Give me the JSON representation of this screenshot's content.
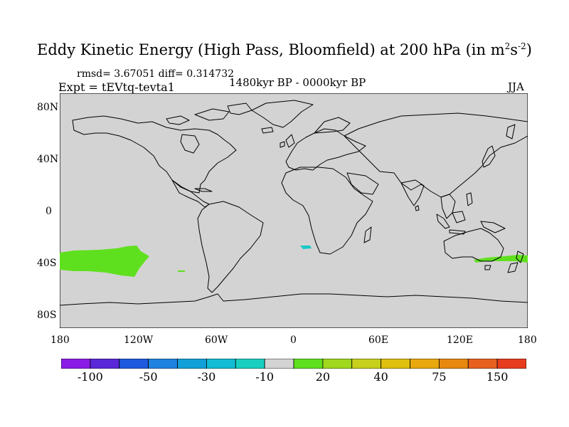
{
  "title": {
    "main": "Eddy Kinetic Energy (High Pass, Bloomfield) at 200 hPa (in m",
    "sup1": "2",
    "mid": "s",
    "sup2": "-2",
    "end": ")"
  },
  "stats": "rmsd= 3.67051 diff= 0.314732",
  "experiment": "Expt = tEVtq-tevta1",
  "period": "1480kyr BP - 0000kyr BP",
  "season": "JJA",
  "lat_ticks": [
    "80N",
    "40N",
    "0",
    "40S",
    "80S"
  ],
  "lon_ticks": [
    "180",
    "120W",
    "60W",
    "0",
    "60E",
    "120E",
    "180"
  ],
  "colors": {
    "background": "#d3d3d3",
    "positive_20": "#5fe01e",
    "negative_10": "#19c8c8",
    "coast": "#000000"
  },
  "colorbar": {
    "colors": [
      "#8a1ae6",
      "#5a28d8",
      "#1e5ae0",
      "#1e82e0",
      "#12a0d8",
      "#12bcd4",
      "#19d0c0",
      "#d3d3d3",
      "#5fe01e",
      "#a0d81e",
      "#c8d01e",
      "#e0c00e",
      "#e8a80e",
      "#e8880e",
      "#e8601e",
      "#e83c1e"
    ],
    "labels": [
      "-100",
      "-50",
      "-30",
      "-10",
      "20",
      "40",
      "75",
      "150"
    ]
  }
}
